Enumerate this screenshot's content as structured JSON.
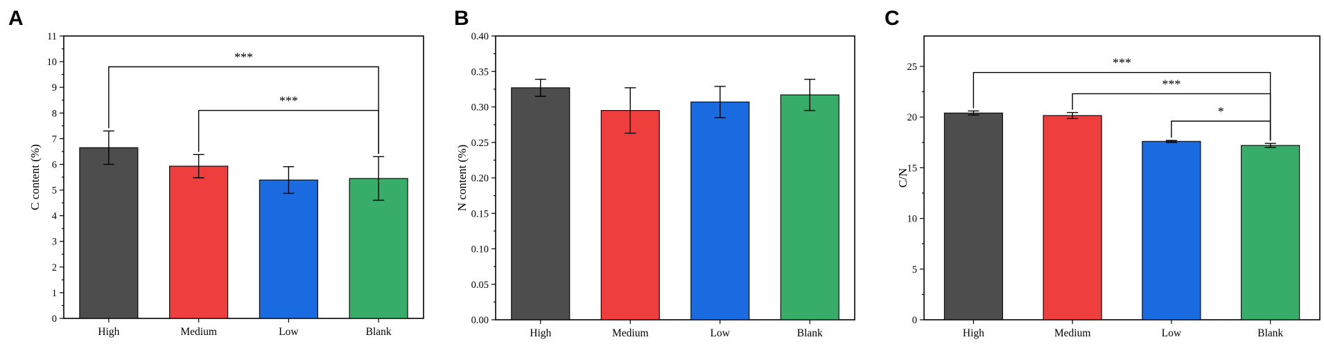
{
  "colors": {
    "High": "#4d4d4d",
    "Medium": "#ee3e3e",
    "Low": "#1a6be0",
    "Blank": "#37ad69"
  },
  "chart_data": [
    {
      "type": "bar",
      "panel": "A",
      "categories": [
        "High",
        "Medium",
        "Low",
        "Blank"
      ],
      "values": [
        6.65,
        5.93,
        5.39,
        5.45
      ],
      "errors": [
        0.65,
        0.45,
        0.52,
        0.85
      ],
      "ylabel": "C content (%)",
      "xlabel": "",
      "ylim": [
        0,
        11
      ],
      "yticks": [
        "0",
        "1",
        "2",
        "3",
        "4",
        "5",
        "6",
        "7",
        "8",
        "9",
        "10",
        "11"
      ],
      "significance": [
        {
          "from": "High",
          "to": "Blank",
          "label": "***",
          "y": 9.8
        },
        {
          "from": "Medium",
          "to": "Blank",
          "label": "***",
          "y": 8.1
        }
      ]
    },
    {
      "type": "bar",
      "panel": "B",
      "categories": [
        "High",
        "Medium",
        "Low",
        "Blank"
      ],
      "values": [
        0.327,
        0.295,
        0.307,
        0.317
      ],
      "errors": [
        0.012,
        0.032,
        0.022,
        0.022
      ],
      "ylabel": "N content (%)",
      "xlabel": "",
      "ylim": [
        0,
        0.4
      ],
      "yticks": [
        "0.00",
        "0.05",
        "0.10",
        "0.15",
        "0.20",
        "0.25",
        "0.30",
        "0.35",
        "0.40"
      ],
      "significance": []
    },
    {
      "type": "bar",
      "panel": "C",
      "categories": [
        "High",
        "Medium",
        "Low",
        "Blank"
      ],
      "values": [
        20.4,
        20.15,
        17.6,
        17.2
      ],
      "errors": [
        0.2,
        0.3,
        0.1,
        0.2
      ],
      "ylabel": "C/N",
      "xlabel": "",
      "ylim": [
        0,
        28
      ],
      "yticks": [
        "0",
        "5",
        "10",
        "15",
        "20",
        "25"
      ],
      "significance": [
        {
          "from": "High",
          "to": "Blank",
          "label": "***",
          "y": 24.4
        },
        {
          "from": "Medium",
          "to": "Blank",
          "label": "***",
          "y": 22.3
        },
        {
          "from": "Low",
          "to": "Blank",
          "label": "*",
          "y": 19.6
        }
      ]
    }
  ]
}
